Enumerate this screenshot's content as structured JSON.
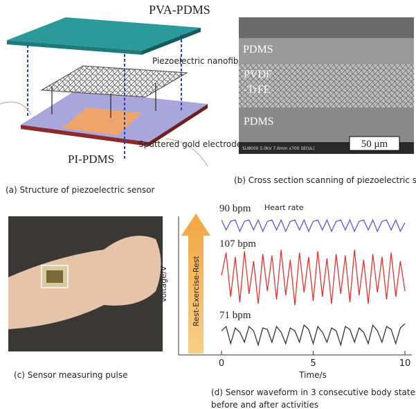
{
  "panels": {
    "a": {
      "top_layer": "PVA-PDMS",
      "middle_layer": "Piezoelectric nanofiber",
      "electrode": "Sputtered gold electrode",
      "bottom_layer": "PI-PDMS",
      "caption": "(a) Structure of piezoelectric sensor"
    },
    "b": {
      "top_label": "PDMS",
      "middle_label": [
        "PVDF",
        "-TrFE"
      ],
      "bottom_label": "PDMS",
      "scale_bar": "50 μm",
      "info": "SU8000 5.0kV 7.6mm x700 SE(UL)",
      "caption": "(b) Cross section scanning of piezoelectric sensor"
    },
    "c": {
      "caption": "(c) Sensor measuring pulse"
    },
    "d": {
      "caption": [
        "(d) Sensor waveform in 3 consecutive body states",
        "before and after activities"
      ]
    }
  },
  "chart_data": {
    "type": "line",
    "xlabel": "Time/s",
    "ylabel": "Voltage/V",
    "arrow_label": "Rest-Exercise-Rest",
    "annotation": "Heart rate",
    "xlim": [
      0,
      10
    ],
    "xticks": [
      0,
      5,
      10
    ],
    "ylim": [
      0,
      10
    ],
    "x": [
      0,
      0.25,
      0.5,
      0.75,
      1,
      1.25,
      1.5,
      1.75,
      2,
      2.25,
      2.5,
      2.75,
      3,
      3.25,
      3.5,
      3.75,
      4,
      4.25,
      4.5,
      4.75,
      5,
      5.25,
      5.5,
      5.75,
      6,
      6.25,
      6.5,
      6.75,
      7,
      7.25,
      7.5,
      7.75,
      8,
      8.25,
      8.5,
      8.75,
      9,
      9.25,
      9.5,
      9.75,
      10
    ],
    "series": [
      {
        "name": "90 bpm",
        "color": "#5a5ad2",
        "values": [
          9.4,
          8.7,
          9.3,
          9.4,
          8.6,
          9.3,
          9.4,
          8.7,
          9.4,
          8.6,
          9.3,
          9.4,
          8.7,
          9.4,
          8.6,
          9.3,
          9.4,
          8.7,
          9.4,
          8.6,
          9.3,
          9.4,
          8.7,
          9.4,
          8.6,
          9.3,
          9.4,
          8.7,
          9.4,
          8.6,
          9.3,
          9.4,
          8.7,
          9.4,
          8.6,
          9.3,
          9.4,
          8.7,
          9.4,
          8.6,
          9.2
        ]
      },
      {
        "name": "107 bpm",
        "color": "#e03232",
        "values": [
          5.5,
          7.1,
          4.0,
          6.8,
          3.6,
          7.2,
          4.2,
          6.5,
          3.5,
          7.0,
          4.4,
          6.9,
          3.8,
          7.3,
          4.1,
          6.6,
          3.4,
          7.1,
          4.3,
          6.8,
          3.7,
          7.2,
          4.0,
          6.7,
          3.5,
          7.0,
          4.2,
          6.9,
          3.6,
          7.3,
          4.1,
          6.6,
          3.5,
          7.0,
          4.3,
          6.8,
          3.8,
          7.1,
          4.0,
          6.5,
          4.4
        ]
      },
      {
        "name": "71 bpm",
        "color": "#333333",
        "values": [
          1.6,
          1.9,
          0.7,
          1.8,
          1.5,
          0.8,
          1.9,
          1.6,
          0.6,
          1.8,
          1.7,
          0.8,
          1.9,
          1.5,
          0.7,
          1.8,
          1.6,
          0.8,
          2.0,
          1.7,
          0.7,
          1.9,
          1.5,
          0.8,
          1.8,
          1.6,
          0.6,
          1.9,
          1.7,
          0.8,
          1.8,
          1.5,
          0.7,
          2.0,
          1.6,
          0.8,
          1.9,
          1.7,
          0.7,
          1.8,
          2.1
        ]
      }
    ]
  }
}
